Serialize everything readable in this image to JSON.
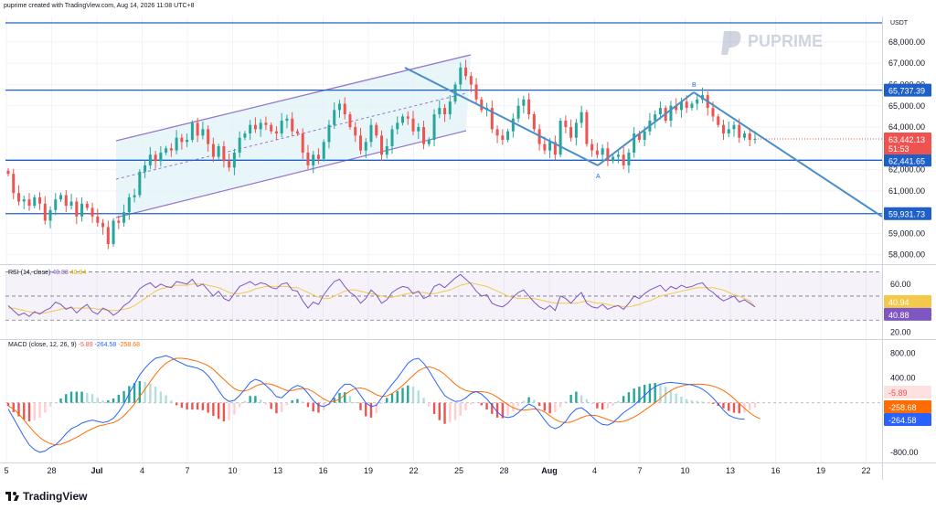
{
  "header": {
    "credit": "puprime created with TradingView.com, Aug 14, 2026 11:08 UTC+8"
  },
  "brand": {
    "watermark": "PUPRIME",
    "footer": "TradingView"
  },
  "colors": {
    "up": "#26a69a",
    "down": "#ef5350",
    "level_line": "#1e60c8",
    "channel": "#9575cd",
    "trend": "#4a8ec9",
    "rsi": "#7e57c2",
    "rsi_ma": "#f2c94c",
    "macd": "#2962ff",
    "signal": "#ff6d00",
    "grid": "#f0f3fa"
  },
  "chart_data": [
    {
      "type": "candlestick",
      "currency": "USDT",
      "y_ticks": [
        58000,
        59000,
        61000,
        62000,
        64000,
        65000,
        66000,
        67000,
        68000
      ],
      "y_tick_labels": [
        "58,000.00",
        "59,000.00",
        "61,000.00",
        "62,000.00",
        "64,000.00",
        "65,000.00",
        "66,000.00",
        "67,000.00",
        "68,000.00"
      ],
      "ylim": [
        57600,
        69200
      ],
      "x_tick_labels": [
        "5",
        "28",
        "Jul",
        "4",
        "7",
        "10",
        "13",
        "16",
        "19",
        "22",
        "25",
        "28",
        "Aug",
        "4",
        "7",
        "10",
        "13",
        "16",
        "19",
        "22"
      ],
      "horizontal_levels": [
        {
          "value": 68900,
          "label": ""
        },
        {
          "value": 65737.39,
          "label": "65,737.39"
        },
        {
          "value": 62441.65,
          "label": "62,441.65"
        },
        {
          "value": 59931.73,
          "label": "59,931.73"
        }
      ],
      "last_price": {
        "value": 63442.13,
        "label": "63,442.13",
        "countdown": "51:53"
      },
      "pattern_labels": [
        "A",
        "B"
      ],
      "series": [
        {
          "name": "close",
          "values": [
            61800,
            60900,
            60500,
            60600,
            60300,
            60700,
            60400,
            59600,
            60100,
            60600,
            60800,
            60300,
            60500,
            59800,
            60400,
            60200,
            59800,
            59500,
            59300,
            58500,
            59600,
            59500,
            60000,
            60700,
            60800,
            61900,
            62200,
            62700,
            62400,
            62800,
            63000,
            62900,
            63500,
            63300,
            63400,
            64200,
            63600,
            63900,
            63200,
            62600,
            63100,
            62400,
            62100,
            62800,
            63500,
            63700,
            64100,
            63900,
            64200,
            64100,
            63800,
            63700,
            64300,
            64400,
            63800,
            63700,
            62800,
            62200,
            62700,
            62500,
            63300,
            64100,
            64800,
            65100,
            64600,
            64000,
            63600,
            62900,
            63300,
            64100,
            63600,
            62700,
            63100,
            63900,
            64200,
            64500,
            64400,
            63800,
            64000,
            63200,
            63400,
            64600,
            64900,
            64600,
            65200,
            66000,
            66800,
            66400,
            66000,
            65300,
            64800,
            64900,
            63900,
            63600,
            63400,
            63800,
            64400,
            65000,
            65300,
            64600,
            63900,
            63200,
            62900,
            63300,
            62700,
            64300,
            64000,
            63500,
            64200,
            64700,
            63200,
            62900,
            62700,
            63000,
            62400,
            62600,
            62700,
            62200,
            62800,
            63700,
            63400,
            63800,
            64300,
            64600,
            64900,
            64300,
            65000,
            64800,
            65200,
            64900,
            65100,
            65300,
            65500,
            64900,
            64500,
            64100,
            63700,
            63900,
            64100,
            63500,
            63700,
            63400,
            63442.13
          ]
        }
      ]
    },
    {
      "type": "line",
      "title": "RSI (14, close)",
      "legend_values": [
        "40.88",
        "40.94"
      ],
      "y_ticks": [
        20,
        40,
        60
      ],
      "y_tick_labels": [
        "20.00",
        "",
        "60.00"
      ],
      "ylim": [
        15,
        75
      ],
      "last_labels": [
        {
          "value": 40.94,
          "label": "40.94"
        },
        {
          "value": 40.88,
          "label": "40.88"
        }
      ],
      "series": [
        {
          "name": "RSI",
          "values": [
            42,
            38,
            34,
            36,
            33,
            37,
            35,
            38,
            40,
            45,
            43,
            39,
            41,
            36,
            40,
            43,
            37,
            35,
            40,
            38,
            34,
            37,
            42,
            45,
            50,
            56,
            59,
            61,
            57,
            60,
            58,
            57,
            62,
            61,
            60,
            64,
            58,
            60,
            55,
            50,
            54,
            48,
            46,
            52,
            58,
            60,
            62,
            59,
            61,
            60,
            57,
            56,
            60,
            61,
            55,
            54,
            46,
            40,
            45,
            43,
            51,
            57,
            62,
            64,
            58,
            53,
            50,
            44,
            48,
            55,
            51,
            44,
            47,
            53,
            56,
            58,
            57,
            52,
            54,
            48,
            50,
            58,
            60,
            57,
            61,
            65,
            68,
            64,
            60,
            54,
            50,
            51,
            44,
            42,
            41,
            44,
            49,
            53,
            55,
            50,
            45,
            41,
            39,
            42,
            38,
            50,
            48,
            44,
            49,
            53,
            44,
            41,
            40,
            43,
            39,
            41,
            42,
            39,
            44,
            50,
            48,
            52,
            55,
            57,
            59,
            54,
            58,
            56,
            59,
            57,
            58,
            60,
            61,
            56,
            53,
            49,
            46,
            48,
            50,
            45,
            47,
            44,
            40.88
          ]
        },
        {
          "name": "RSI-based MA",
          "values": [
            40,
            40,
            39,
            38,
            37,
            36,
            36,
            36,
            37,
            38,
            39,
            40,
            40,
            40,
            40,
            40,
            40,
            39,
            39,
            38,
            38,
            38,
            39,
            40,
            42,
            45,
            48,
            51,
            54,
            56,
            57,
            58,
            59,
            59,
            59,
            60,
            60,
            60,
            59,
            58,
            57,
            55,
            53,
            52,
            52,
            53,
            54,
            56,
            57,
            58,
            58,
            58,
            58,
            58,
            57,
            57,
            55,
            53,
            51,
            49,
            48,
            48,
            50,
            52,
            54,
            55,
            55,
            54,
            53,
            52,
            51,
            50,
            49,
            49,
            50,
            51,
            52,
            53,
            53,
            53,
            52,
            52,
            53,
            54,
            55,
            57,
            59,
            60,
            61,
            60,
            59,
            58,
            56,
            54,
            52,
            50,
            49,
            48,
            48,
            48,
            48,
            47,
            46,
            45,
            44,
            44,
            44,
            44,
            44,
            45,
            46,
            45,
            44,
            44,
            43,
            42,
            42,
            41,
            41,
            42,
            43,
            45,
            46,
            48,
            50,
            51,
            52,
            53,
            54,
            55,
            56,
            57,
            57,
            57,
            57,
            56,
            55,
            53,
            51,
            50,
            48,
            46,
            40.94
          ]
        }
      ]
    },
    {
      "type": "bar+line",
      "title": "MACD (close, 12, 26, 9)",
      "legend_values": [
        "-5.89",
        "-264.58",
        "-258.68"
      ],
      "y_ticks": [
        -800,
        400,
        800
      ],
      "y_tick_labels": [
        "-800.00",
        "400.00",
        "800.00"
      ],
      "ylim": [
        -950,
        1000
      ],
      "last_labels": [
        {
          "value": -5.89,
          "label": "-5.89"
        },
        {
          "value": -258.68,
          "label": "-258.68"
        },
        {
          "value": -264.58,
          "label": "-264.58"
        }
      ],
      "series": [
        {
          "name": "MACD",
          "values": [
            -100,
            -250,
            -400,
            -550,
            -680,
            -760,
            -800,
            -780,
            -720,
            -680,
            -600,
            -500,
            -420,
            -380,
            -330,
            -300,
            -280,
            -300,
            -320,
            -300,
            -250,
            -150,
            -20,
            150,
            300,
            450,
            560,
            650,
            720,
            740,
            760,
            730,
            680,
            640,
            600,
            580,
            560,
            520,
            440,
            330,
            200,
            80,
            20,
            40,
            120,
            220,
            330,
            380,
            350,
            280,
            200,
            100,
            80,
            160,
            240,
            280,
            250,
            150,
            40,
            -40,
            -60,
            -20,
            100,
            220,
            300,
            300,
            240,
            120,
            0,
            -60,
            -40,
            80,
            190,
            300,
            400,
            520,
            640,
            700,
            720,
            640,
            520,
            380,
            240,
            120,
            60,
            20,
            30,
            80,
            150,
            180,
            140,
            60,
            -40,
            -150,
            -220,
            -240,
            -220,
            -160,
            -80,
            -20,
            -60,
            -160,
            -280,
            -380,
            -420,
            -380,
            -300,
            -180,
            -100,
            -80,
            -140,
            -220,
            -300,
            -350,
            -360,
            -320,
            -240,
            -160,
            -100,
            -40,
            40,
            120,
            200,
            260,
            300,
            320,
            330,
            320,
            310,
            300,
            290,
            260,
            220,
            160,
            80,
            -20,
            -120,
            -200,
            -240,
            -260,
            -264.58
          ]
        },
        {
          "name": "Signal",
          "values": [
            -50,
            -100,
            -180,
            -280,
            -380,
            -480,
            -560,
            -620,
            -660,
            -680,
            -670,
            -640,
            -600,
            -560,
            -510,
            -460,
            -420,
            -380,
            -360,
            -340,
            -320,
            -280,
            -210,
            -120,
            -20,
            100,
            220,
            340,
            460,
            560,
            640,
            690,
            720,
            720,
            710,
            690,
            670,
            640,
            600,
            540,
            460,
            380,
            300,
            230,
            190,
            190,
            220,
            270,
            300,
            310,
            300,
            270,
            230,
            200,
            200,
            220,
            230,
            220,
            180,
            120,
            60,
            20,
            20,
            60,
            130,
            190,
            230,
            240,
            220,
            180,
            130,
            100,
            110,
            150,
            210,
            280,
            360,
            440,
            520,
            560,
            580,
            560,
            520,
            460,
            380,
            300,
            240,
            200,
            180,
            180,
            180,
            170,
            140,
            90,
            30,
            -30,
            -80,
            -110,
            -120,
            -110,
            -100,
            -110,
            -150,
            -210,
            -270,
            -310,
            -320,
            -310,
            -280,
            -240,
            -210,
            -200,
            -210,
            -240,
            -270,
            -300,
            -310,
            -300,
            -270,
            -230,
            -180,
            -120,
            -60,
            0,
            70,
            140,
            200,
            240,
            270,
            290,
            300,
            300,
            300,
            290,
            270,
            240,
            200,
            140,
            70,
            -10,
            -90,
            -160,
            -220,
            -258.68
          ]
        },
        {
          "name": "Histogram",
          "values": [
            -50,
            -150,
            -220,
            -270,
            -300,
            -280,
            -240,
            -160,
            -60,
            0,
            70,
            140,
            180,
            180,
            180,
            160,
            140,
            80,
            40,
            40,
            70,
            130,
            190,
            270,
            320,
            350,
            340,
            310,
            260,
            180,
            120,
            40,
            -40,
            -80,
            -110,
            -110,
            -110,
            -120,
            -160,
            -210,
            -260,
            -300,
            -280,
            -190,
            -70,
            30,
            110,
            110,
            50,
            -30,
            -100,
            -170,
            -150,
            -40,
            40,
            60,
            20,
            -70,
            -140,
            -160,
            -120,
            -40,
            80,
            160,
            170,
            110,
            10,
            -120,
            -220,
            -240,
            -170,
            -20,
            80,
            150,
            190,
            240,
            280,
            260,
            200,
            80,
            -60,
            -180,
            -280,
            -340,
            -320,
            -280,
            -210,
            -120,
            -30,
            0,
            -40,
            -110,
            -180,
            -240,
            -250,
            -210,
            -140,
            -50,
            30,
            90,
            50,
            -50,
            -130,
            -170,
            -150,
            -70,
            20,
            130,
            180,
            120,
            60,
            -20,
            -90,
            -110,
            -90,
            -50,
            30,
            110,
            170,
            230,
            260,
            290,
            310,
            320,
            300,
            260,
            200,
            150,
            100,
            60,
            40,
            30,
            20,
            0,
            -20,
            -50,
            -90,
            -130,
            -160,
            -170,
            -160,
            -120,
            -80,
            -5.89
          ]
        }
      ]
    }
  ]
}
